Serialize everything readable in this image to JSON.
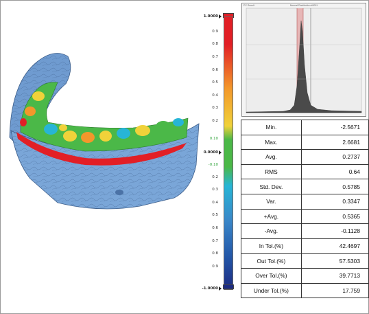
{
  "color_scale": {
    "max_label": "1.0000",
    "min_label": "-1.0000",
    "zero_label": "0.0000",
    "upper_tol_label": "0.10",
    "lower_tol_label": "-0.10",
    "ticks_upper": [
      "0.9",
      "0.8",
      "0.7",
      "0.6",
      "0.5",
      "0.4",
      "0.3",
      "0.2"
    ],
    "ticks_lower": [
      "0.2",
      "0.3",
      "0.4",
      "0.5",
      "0.6",
      "0.7",
      "0.8",
      "0.9"
    ],
    "colors": {
      "red": "#e21f26",
      "orange": "#f3972b",
      "yellow": "#f0d23a",
      "green": "#4bb848",
      "cyan": "#27b5d6",
      "blue": "#2357a8",
      "dark_blue": "#1d2b82"
    }
  },
  "histogram": {
    "title": "Normal Distribution #0001",
    "corner_label": "PC Result"
  },
  "stats": [
    {
      "label": "Min.",
      "value": "-2.5671"
    },
    {
      "label": "Max.",
      "value": "2.6681"
    },
    {
      "label": "Avg.",
      "value": "0.2737"
    },
    {
      "label": "RMS",
      "value": "0.64"
    },
    {
      "label": "Std. Dev.",
      "value": "0.5785"
    },
    {
      "label": "Var.",
      "value": "0.3347"
    },
    {
      "label": "+Avg.",
      "value": "0.5365"
    },
    {
      "label": "-Avg.",
      "value": "-0.1128"
    },
    {
      "label": "In Tol.(%)",
      "value": "42.4697"
    },
    {
      "label": "Out Tol.(%)",
      "value": "57.5303"
    },
    {
      "label": "Over Tol.(%)",
      "value": "39.7713"
    },
    {
      "label": "Under Tol.(%)",
      "value": "17.759"
    }
  ]
}
